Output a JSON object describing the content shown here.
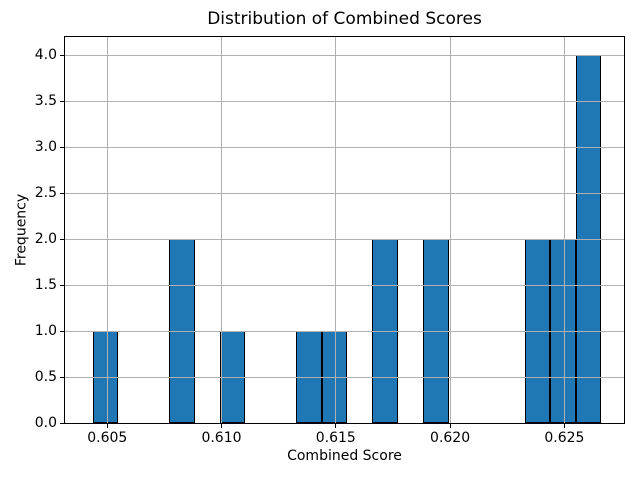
{
  "chart_data": {
    "type": "bar",
    "variant": "histogram",
    "title": "Distribution of Combined Scores",
    "xlabel": "Combined Score",
    "ylabel": "Frequency",
    "bin_edges": [
      0.60437,
      0.60548,
      0.6066,
      0.60771,
      0.60882,
      0.60993,
      0.61104,
      0.61216,
      0.61327,
      0.61438,
      0.61549,
      0.6166,
      0.61772,
      0.61883,
      0.61994,
      0.62105,
      0.62216,
      0.62328,
      0.62439,
      0.6255,
      0.62661
    ],
    "counts": [
      1,
      0,
      0,
      2,
      0,
      1,
      0,
      0,
      1,
      1,
      0,
      2,
      0,
      2,
      0,
      0,
      0,
      2,
      2,
      4
    ],
    "total_observations": 18,
    "xlim": [
      0.60315,
      0.62761
    ],
    "ylim": [
      0,
      4.2
    ],
    "xticks": [
      {
        "value": 0.605,
        "label": "0.605"
      },
      {
        "value": 0.61,
        "label": "0.610"
      },
      {
        "value": 0.615,
        "label": "0.615"
      },
      {
        "value": 0.62,
        "label": "0.620"
      },
      {
        "value": 0.625,
        "label": "0.625"
      }
    ],
    "yticks": [
      {
        "value": 0.0,
        "label": "0.0"
      },
      {
        "value": 0.5,
        "label": "0.5"
      },
      {
        "value": 1.0,
        "label": "1.0"
      },
      {
        "value": 1.5,
        "label": "1.5"
      },
      {
        "value": 2.0,
        "label": "2.0"
      },
      {
        "value": 2.5,
        "label": "2.5"
      },
      {
        "value": 3.0,
        "label": "3.0"
      },
      {
        "value": 3.5,
        "label": "3.5"
      },
      {
        "value": 4.0,
        "label": "4.0"
      }
    ],
    "grid": true,
    "grid_over_bars": true,
    "legend": null,
    "colors": {
      "bar_fill": "#1f77b4",
      "bar_edge": "#000000",
      "grid": "#b0b0b0",
      "spine": "#000000",
      "text": "#000000",
      "background": "#ffffff"
    }
  }
}
